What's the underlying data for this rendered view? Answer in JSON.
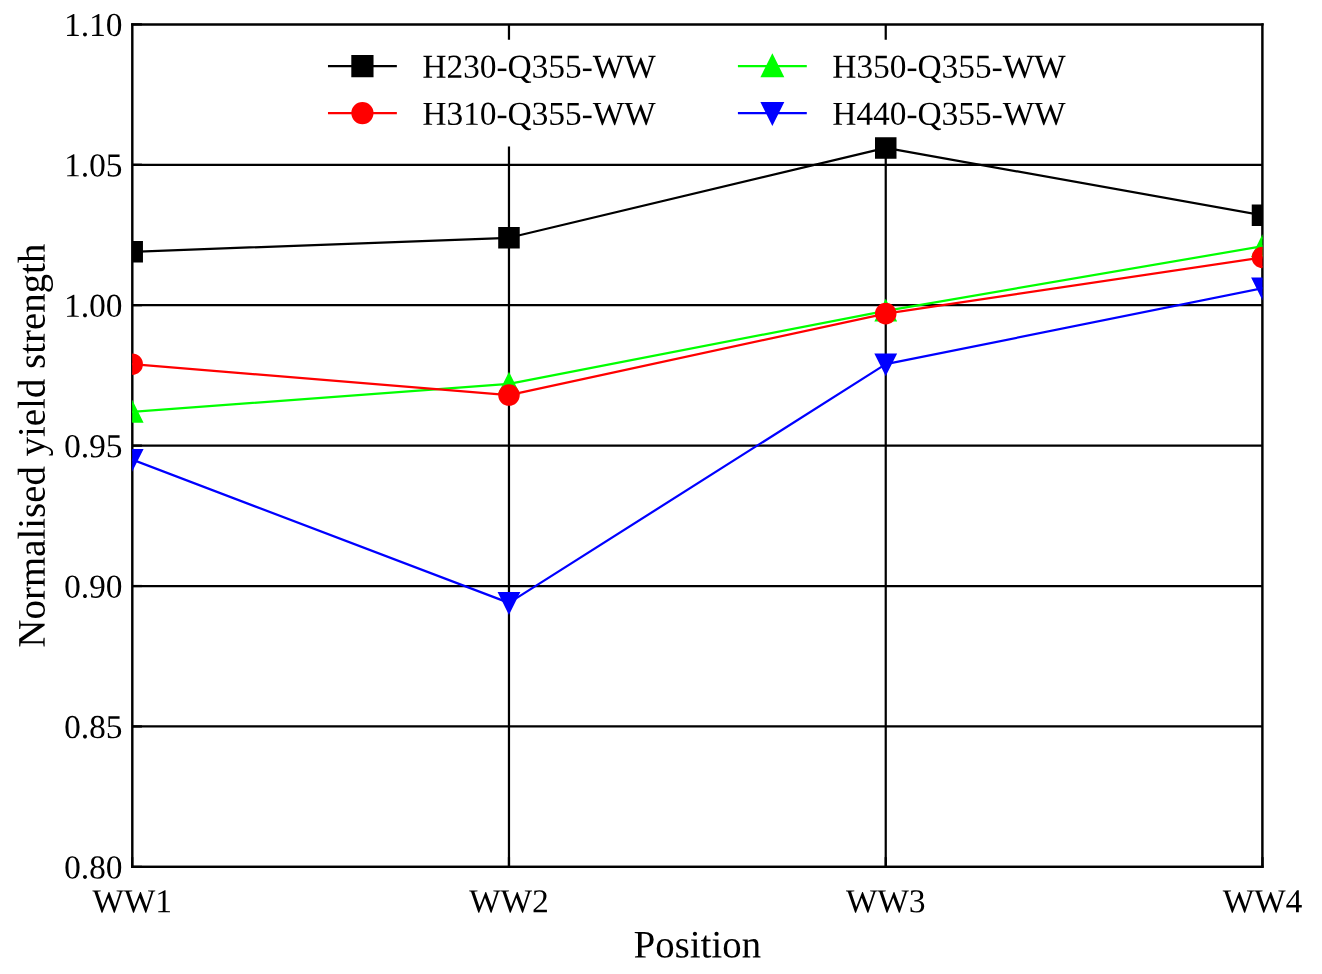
{
  "chart_data": {
    "type": "line",
    "xlabel": "Position",
    "ylabel": "Normalised yield strength",
    "categories": [
      "WW1",
      "WW2",
      "WW3",
      "WW4"
    ],
    "series": [
      {
        "name": "H230-Q355-WW",
        "color": "#000000",
        "marker": "square",
        "values": [
          1.019,
          1.024,
          1.056,
          1.032
        ]
      },
      {
        "name": "H310-Q355-WW",
        "color": "#ff0000",
        "marker": "circle",
        "values": [
          0.979,
          0.968,
          0.997,
          1.017
        ]
      },
      {
        "name": "H350-Q355-WW",
        "color": "#00ff00",
        "marker": "triangle",
        "values": [
          0.962,
          0.972,
          0.998,
          1.021
        ]
      },
      {
        "name": "H440-Q355-WW",
        "color": "#0000ff",
        "marker": "triangle_down",
        "values": [
          0.945,
          0.894,
          0.979,
          1.006
        ]
      }
    ],
    "ylim": [
      0.8,
      1.1
    ],
    "yticks": [
      {
        "value": 0.8,
        "label": "0.80"
      },
      {
        "value": 0.85,
        "label": "0.85"
      },
      {
        "value": 0.9,
        "label": "0.90"
      },
      {
        "value": 0.95,
        "label": "0.95"
      },
      {
        "value": 1.0,
        "label": "1.00"
      },
      {
        "value": 1.05,
        "label": "1.05"
      },
      {
        "value": 1.1,
        "label": "1.10"
      }
    ],
    "grid": true,
    "legend": "top",
    "line_style": "solid"
  }
}
